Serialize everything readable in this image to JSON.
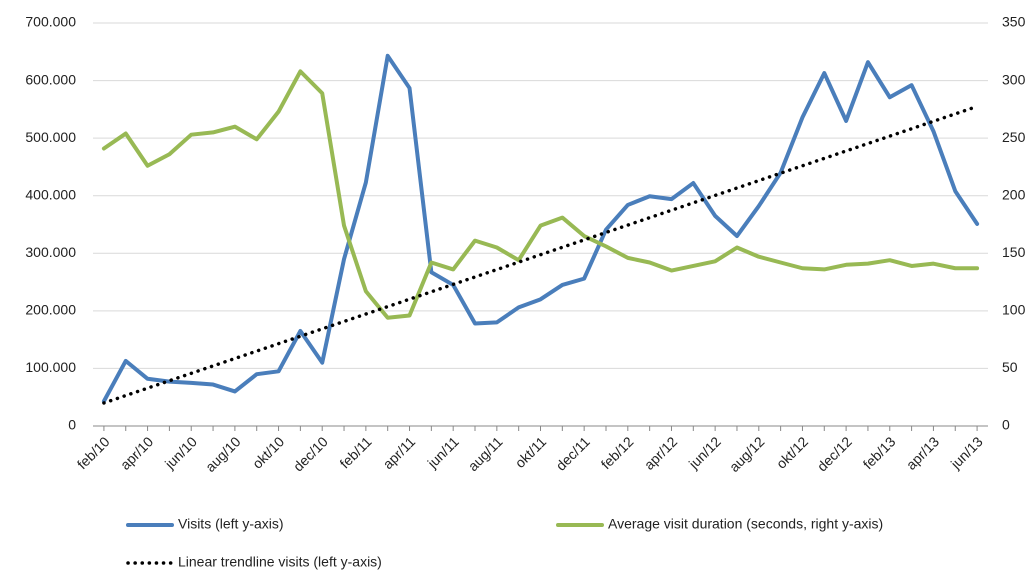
{
  "chart_data": {
    "type": "line",
    "categories": [
      "feb/10",
      null,
      "apr/10",
      null,
      "jun/10",
      null,
      "aug/10",
      null,
      "okt/10",
      null,
      "dec/10",
      null,
      "feb/11",
      null,
      "apr/11",
      null,
      "jun/11",
      null,
      "aug/11",
      null,
      "okt/11",
      null,
      "dec/11",
      null,
      "feb/12",
      null,
      "apr/12",
      null,
      "jun/12",
      null,
      "aug/12",
      null,
      "okt/12",
      null,
      "dec/12",
      null,
      "feb/13",
      null,
      "apr/13",
      null,
      "jun/13"
    ],
    "series": [
      {
        "name": "Visits (left y-axis)",
        "color": "#4a7ebb",
        "style": "solid",
        "axis": "y",
        "values": [
          43000,
          113000,
          82000,
          77000,
          75000,
          72000,
          60000,
          90000,
          95000,
          165000,
          110000,
          290000,
          423000,
          643000,
          587000,
          267000,
          245000,
          178000,
          180000,
          206000,
          220000,
          245000,
          256000,
          341000,
          384000,
          399000,
          394000,
          422000,
          365000,
          330000,
          382000,
          440000,
          536000,
          613000,
          530000,
          632000,
          571000,
          592000,
          512000,
          408000,
          351000
        ]
      },
      {
        "name": "Average visit duration (seconds, right y-axis)",
        "color": "#98b954",
        "style": "solid",
        "axis": "y2",
        "values": [
          241,
          254,
          226,
          236,
          253,
          255,
          260,
          249,
          273,
          308,
          289,
          174,
          117,
          94,
          96,
          142,
          136,
          161,
          155,
          144,
          174,
          181,
          165,
          156,
          146,
          142,
          135,
          139,
          143,
          155,
          147,
          142,
          137,
          136,
          140,
          141,
          144,
          139,
          141,
          137,
          137
        ]
      },
      {
        "name": "Linear trendline visits (left y-axis)",
        "color": "#000000",
        "style": "dotted",
        "axis": "y",
        "values": [
          40000,
          52875,
          65750,
          78625,
          91500,
          104375,
          117250,
          130125,
          143000,
          155875,
          168750,
          181625,
          194500,
          207375,
          220250,
          233125,
          246000,
          258875,
          271750,
          284625,
          297500,
          310375,
          323250,
          336125,
          349000,
          361875,
          374750,
          387625,
          400500,
          413375,
          426250,
          439125,
          452000,
          464875,
          477750,
          490625,
          503500,
          516375,
          529250,
          542125,
          555000
        ]
      }
    ],
    "ylim": [
      0,
      700000
    ],
    "yticks": [
      0,
      {
        "value": 100000,
        "label": "100.000"
      },
      {
        "value": 200000,
        "label": "200.000"
      },
      {
        "value": 300000,
        "label": "300.000"
      },
      {
        "value": 400000,
        "label": "400.000"
      },
      {
        "value": 500000,
        "label": "500.000"
      },
      {
        "value": 600000,
        "label": "600.000"
      },
      {
        "value": 700000,
        "label": "700.000"
      }
    ],
    "y2lim": [
      0,
      350
    ],
    "y2ticks": [
      0,
      50,
      100,
      150,
      200,
      250,
      300,
      350
    ],
    "grid": true,
    "legend": "bottom"
  }
}
